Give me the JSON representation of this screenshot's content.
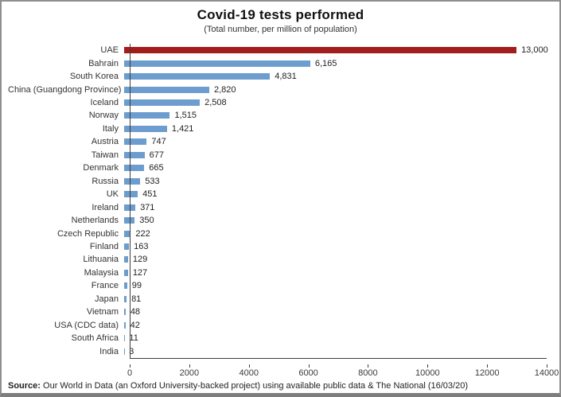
{
  "header": {
    "title": "Covid-19 tests performed",
    "subtitle": "(Total number, per million of population)"
  },
  "chart_data": {
    "type": "bar",
    "orientation": "horizontal",
    "title": "Covid-19 tests performed",
    "subtitle": "(Total number, per million of population)",
    "categories": [
      "UAE",
      "Bahrain",
      "South Korea",
      "China (Guangdong Province)",
      "Iceland",
      "Norway",
      "Italy",
      "Austria",
      "Taiwan",
      "Denmark",
      "Russia",
      "UK",
      "Ireland",
      "Netherlands",
      "Czech Republic",
      "Finland",
      "Lithuania",
      "Malaysia",
      "France",
      "Japan",
      "Vietnam",
      "USA (CDC data)",
      "South Africa",
      "India"
    ],
    "values": [
      13000,
      6165,
      4831,
      2820,
      2508,
      1515,
      1421,
      747,
      677,
      665,
      533,
      451,
      371,
      350,
      222,
      163,
      129,
      127,
      99,
      81,
      48,
      42,
      11,
      3
    ],
    "value_labels": [
      "13,000",
      "6,165",
      "4,831",
      "2,820",
      "2,508",
      "1,515",
      "1,421",
      "747",
      "677",
      "665",
      "533",
      "451",
      "371",
      "350",
      "222",
      "163",
      "129",
      "127",
      "99",
      "81",
      "48",
      "42",
      "11",
      "3"
    ],
    "xlim": [
      0,
      14000
    ],
    "x_ticks": [
      0,
      2000,
      4000,
      6000,
      8000,
      10000,
      12000,
      14000
    ],
    "highlight_index": 0,
    "bar_colors": {
      "highlight": "#A31D1D",
      "default": "#6C9DCE"
    },
    "grid": false,
    "legend": false,
    "xlabel": "",
    "ylabel": ""
  },
  "footer": {
    "source_label": "Source:",
    "source_text": " Our World in Data (an Oxford University-backed project) using available public data & The National  (16/03/20)"
  }
}
